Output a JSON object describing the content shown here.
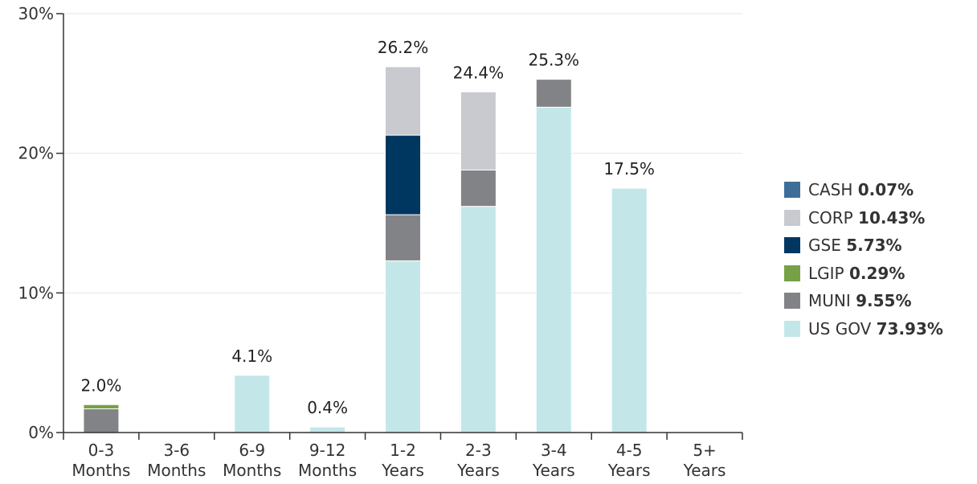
{
  "chart_data": {
    "type": "bar",
    "stacked": true,
    "categories": [
      [
        "0-3",
        "Months"
      ],
      [
        "3-6",
        "Months"
      ],
      [
        "6-9",
        "Months"
      ],
      [
        "9-12",
        "Months"
      ],
      [
        "1-2",
        "Years"
      ],
      [
        "2-3",
        "Years"
      ],
      [
        "3-4",
        "Years"
      ],
      [
        "4-5",
        "Years"
      ],
      [
        "5+",
        "Years"
      ]
    ],
    "ylim": [
      0,
      30
    ],
    "yticks": [
      "0%",
      "10%",
      "20%",
      "30%"
    ],
    "grid": true,
    "legend_position": "right",
    "series": [
      {
        "name": "US GOV",
        "pct": "73.93%",
        "color": "#c3e7e9",
        "values": [
          0,
          0,
          4.1,
          0.4,
          12.3,
          16.2,
          23.3,
          17.5,
          0
        ]
      },
      {
        "name": "MUNI",
        "pct": "9.55%",
        "color": "#828386",
        "values": [
          1.7,
          0,
          0,
          0,
          3.3,
          2.6,
          2.0,
          0,
          0
        ]
      },
      {
        "name": "LGIP",
        "pct": "0.29%",
        "color": "#76a145",
        "values": [
          0.3,
          0,
          0,
          0,
          0,
          0,
          0,
          0,
          0
        ]
      },
      {
        "name": "GSE",
        "pct": "5.73%",
        "color": "#003761",
        "values": [
          0,
          0,
          0,
          0,
          5.7,
          0,
          0,
          0,
          0
        ]
      },
      {
        "name": "CORP",
        "pct": "10.43%",
        "color": "#c9cad0",
        "values": [
          0,
          0,
          0,
          0,
          4.9,
          5.6,
          0,
          0,
          0
        ]
      },
      {
        "name": "CASH",
        "pct": "0.07%",
        "color": "#3d6e99",
        "values": [
          0,
          0,
          0,
          0,
          0,
          0,
          0,
          0,
          0
        ]
      }
    ],
    "totals": [
      "2.0%",
      "",
      "4.1%",
      "0.4%",
      "26.2%",
      "24.4%",
      "25.3%",
      "17.5%",
      ""
    ],
    "total_values": [
      2.0,
      0,
      4.1,
      0.4,
      26.2,
      24.4,
      25.3,
      17.5,
      0
    ],
    "legend_order": [
      "CASH",
      "CORP",
      "GSE",
      "LGIP",
      "MUNI",
      "US GOV"
    ]
  }
}
